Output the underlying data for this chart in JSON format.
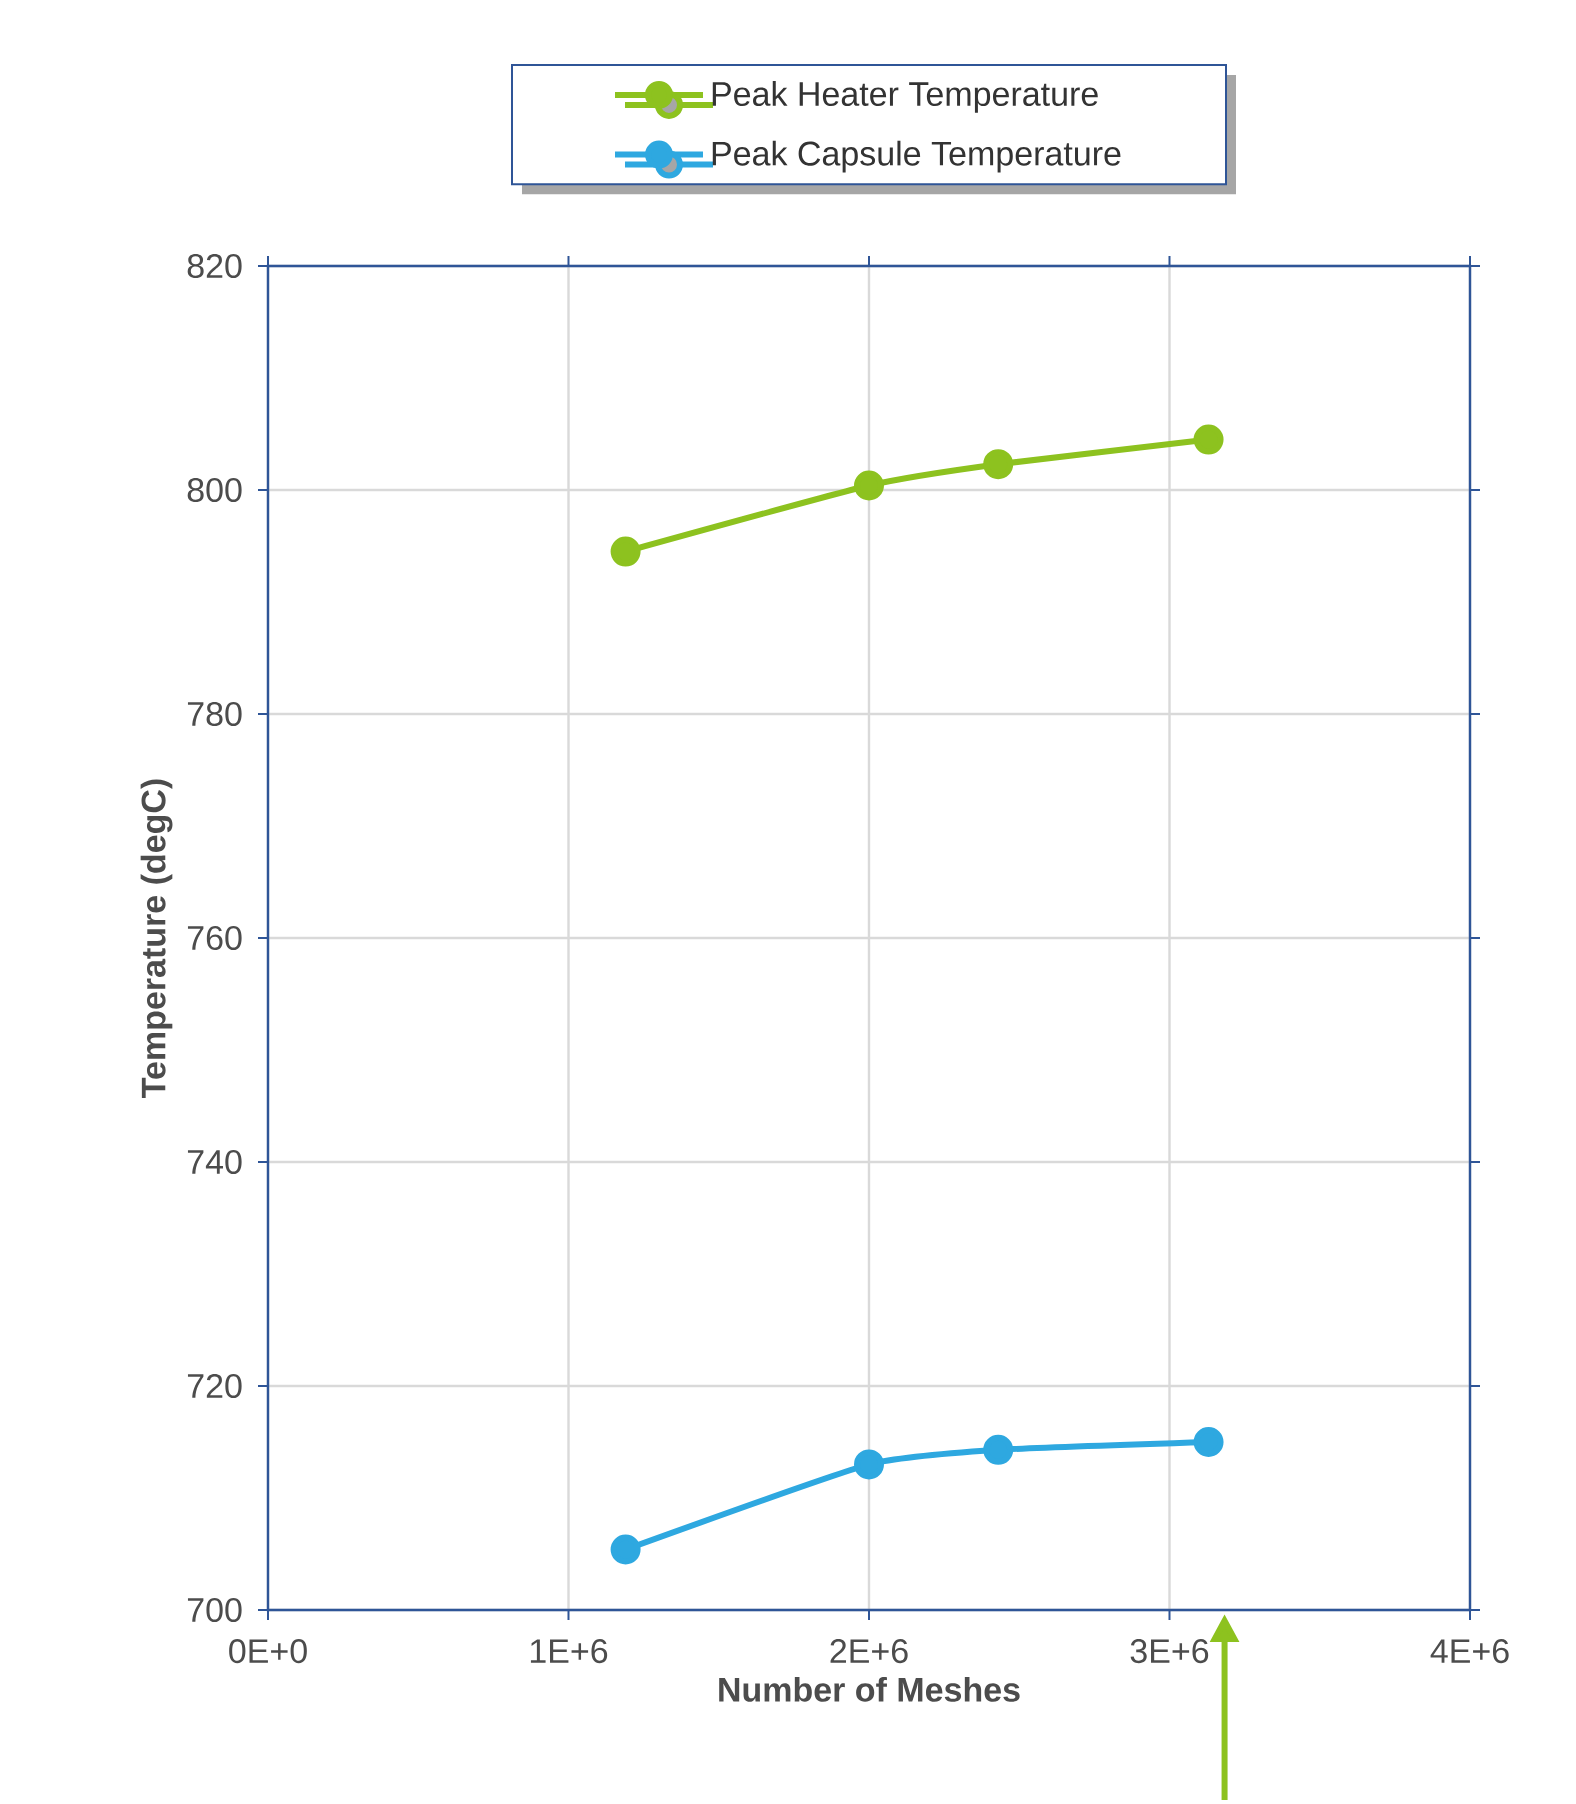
{
  "chart_data": {
    "type": "line",
    "xlabel": "Number of Meshes",
    "ylabel": "Temperature (degC)",
    "xlim": [
      0,
      4000000
    ],
    "ylim": [
      700,
      820
    ],
    "xticks": [
      {
        "value": 0,
        "label": "0E+0"
      },
      {
        "value": 1000000,
        "label": "1E+6"
      },
      {
        "value": 2000000,
        "label": "2E+6"
      },
      {
        "value": 3000000,
        "label": "3E+6"
      },
      {
        "value": 4000000,
        "label": "4E+6"
      }
    ],
    "yticks": [
      700,
      720,
      740,
      760,
      780,
      800,
      820
    ],
    "grid": true,
    "legend": "top",
    "marker": "circle",
    "line_style": "solid",
    "series": [
      {
        "name": "Peak Heater Temperature",
        "color": "#8dc21f",
        "x": [
          1190000,
          2000000,
          2430000,
          3130000
        ],
        "values": [
          794.5,
          800.4,
          802.3,
          804.5
        ]
      },
      {
        "name": "Peak Capsule Temperature",
        "color": "#2ea8e0",
        "x": [
          1190000,
          2000000,
          2430000,
          3130000
        ],
        "values": [
          705.4,
          713.0,
          714.3,
          715.0
        ]
      }
    ]
  }
}
